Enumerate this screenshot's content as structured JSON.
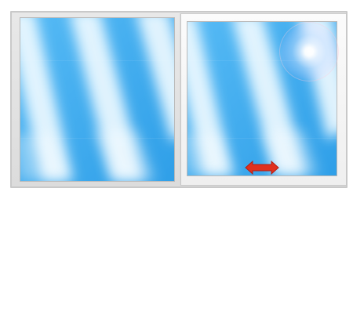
{
  "window": {
    "frame_color": "#dcdcdc",
    "glass_color": "#35a9ef",
    "cloud_color": "#eaf7ff"
  },
  "fixed_pane": {
    "icon": "sky-glass"
  },
  "sliding_sash": {
    "icon": "sky-glass",
    "sun_icon": "sun-flare-icon",
    "slide_icon": "double-arrow-horizontal-icon",
    "arrow_color": "#e0301e"
  }
}
